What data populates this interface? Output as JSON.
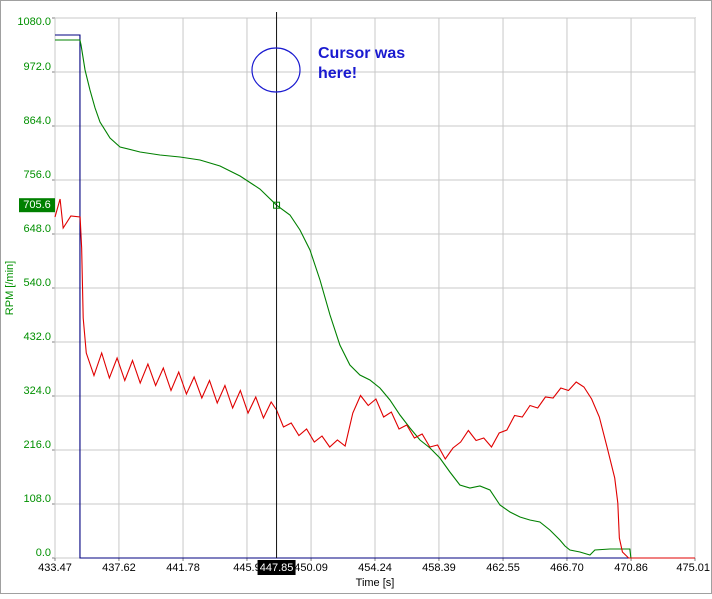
{
  "chart_data": {
    "type": "line",
    "xlabel": "Time [s]",
    "ylabel": "RPM [/min]",
    "annotation": "Cursor was here!",
    "xlim": [
      433.47,
      475.01
    ],
    "xticks": [
      433.47,
      437.62,
      441.78,
      {
        "value": 445.93,
        "label": "445.9"
      },
      450.09,
      454.24,
      458.39,
      462.55,
      {
        "value": 466.7,
        "label": "466.70"
      },
      470.86,
      475.01
    ],
    "ylim": [
      0,
      1080
    ],
    "yticks": [
      {
        "value": 0,
        "label": "0.0"
      },
      {
        "value": 108,
        "label": "108.0"
      },
      {
        "value": 216,
        "label": "216.0"
      },
      {
        "value": 324,
        "label": "324.0"
      },
      {
        "value": 432,
        "label": "432.0"
      },
      {
        "value": 540,
        "label": "540.0"
      },
      {
        "value": 648,
        "label": "648.0"
      },
      {
        "value": 756,
        "label": "756.0"
      },
      {
        "value": 864,
        "label": "864.0"
      },
      {
        "value": 972,
        "label": "972.0"
      },
      {
        "value": 1080,
        "label": "1080.0"
      }
    ],
    "grid": true,
    "cursor": {
      "x": {
        "value": 447.85,
        "label": "447.85"
      },
      "y": {
        "value": 705.6,
        "label": "705.6"
      }
    },
    "series": [
      {
        "color": "#000080",
        "x": [
          433.47,
          435.09,
          435.09,
          475.01
        ],
        "values": [
          1046,
          1046,
          0,
          0
        ]
      },
      {
        "color": "#008000",
        "x": [
          433.47,
          435.09,
          435.16,
          435.42,
          435.74,
          436.07,
          436.39,
          437.04,
          437.69,
          438.99,
          440.28,
          441.58,
          442.88,
          444.18,
          445.48,
          446.77,
          447.85,
          448.72,
          449.37,
          450.02,
          450.67,
          451.32,
          451.96,
          452.61,
          453.26,
          453.91,
          454.56,
          455.21,
          455.86,
          456.51,
          457.16,
          457.81,
          458.45,
          459.1,
          459.75,
          460.4,
          461.05,
          461.7,
          462.35,
          463.0,
          463.65,
          464.29,
          464.94,
          465.59,
          466.24,
          466.57,
          466.89,
          467.54,
          468.19,
          468.51,
          469.49,
          470.78,
          470.85,
          475.01
        ],
        "values": [
          1036,
          1036,
          1026,
          976,
          936,
          900,
          872,
          840,
          822,
          812,
          806,
          802,
          796,
          784,
          764,
          738,
          705.6,
          686,
          656,
          616,
          556,
          486,
          426,
          386,
          366,
          356,
          340,
          316,
          286,
          260,
          236,
          220,
          200,
          172,
          146,
          140,
          144,
          136,
          106,
          92,
          82,
          76,
          72,
          56,
          36,
          24,
          16,
          12,
          6,
          16,
          18,
          18,
          0,
          0
        ]
      },
      {
        "color": "#e00000",
        "x": [
          433.47,
          433.8,
          434.0,
          434.5,
          435.1,
          435.2,
          435.3,
          435.5,
          436.0,
          436.5,
          437.0,
          437.5,
          438.0,
          438.5,
          439.0,
          439.5,
          440.0,
          440.5,
          441.0,
          441.5,
          442.0,
          442.5,
          443.0,
          443.5,
          444.0,
          444.5,
          445.0,
          445.5,
          446.0,
          446.5,
          447.0,
          447.5,
          447.85,
          448.3,
          448.8,
          449.3,
          449.8,
          450.3,
          450.8,
          451.3,
          451.8,
          452.3,
          452.8,
          453.3,
          453.8,
          454.3,
          454.8,
          455.3,
          455.8,
          456.3,
          456.8,
          457.3,
          457.8,
          458.3,
          458.8,
          459.3,
          459.8,
          460.3,
          460.8,
          461.3,
          461.8,
          462.3,
          462.8,
          463.3,
          463.8,
          464.3,
          464.8,
          465.3,
          465.8,
          466.3,
          466.8,
          467.3,
          467.8,
          468.3,
          468.8,
          469.3,
          469.8,
          470.0,
          470.1,
          470.3,
          470.7,
          475.01
        ],
        "values": [
          682,
          718,
          660,
          684,
          682,
          620,
          480,
          410,
          365,
          410,
          360,
          400,
          355,
          395,
          350,
          388,
          345,
          380,
          335,
          372,
          328,
          362,
          320,
          355,
          310,
          345,
          300,
          335,
          290,
          322,
          280,
          312,
          296,
          262,
          270,
          245,
          258,
          232,
          244,
          222,
          236,
          224,
          290,
          325,
          305,
          318,
          282,
          292,
          258,
          266,
          240,
          248,
          222,
          226,
          198,
          220,
          232,
          255,
          235,
          240,
          222,
          250,
          256,
          285,
          282,
          305,
          300,
          322,
          320,
          340,
          335,
          352,
          342,
          318,
          282,
          222,
          160,
          110,
          40,
          12,
          0,
          0
        ]
      }
    ]
  }
}
